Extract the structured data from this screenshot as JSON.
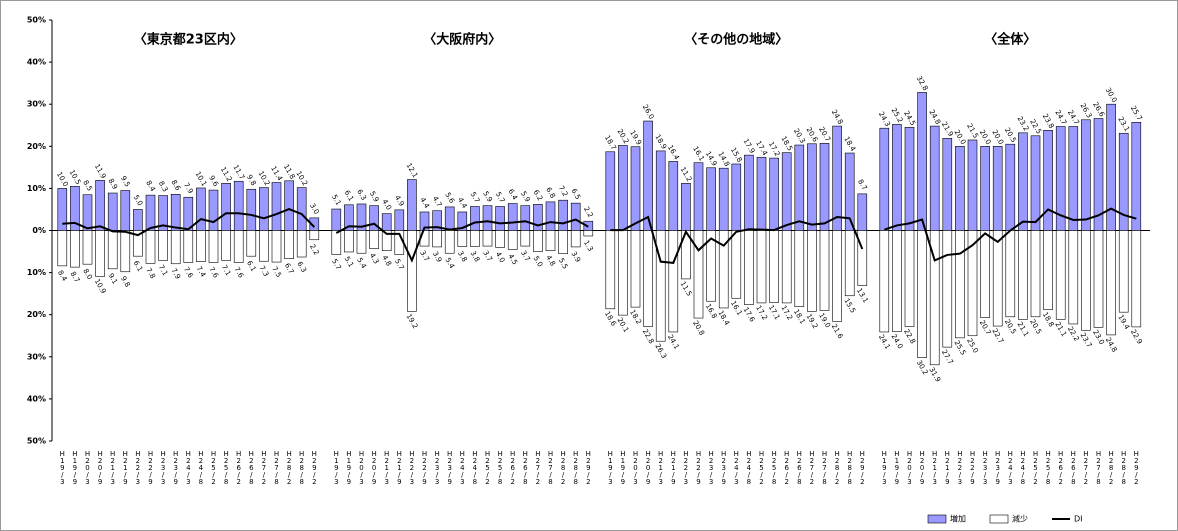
{
  "chart_data": [
    {
      "type": "bar",
      "title": "〈東京都23区内〉",
      "categories": [
        "H19/3",
        "H19/9",
        "H20/3",
        "H20/9",
        "H21/3",
        "H21/9",
        "H22/3",
        "H22/9",
        "H23/3",
        "H23/9",
        "H24/3",
        "H24/8",
        "H25/2",
        "H25/8",
        "H26/2",
        "H26/8",
        "H27/2",
        "H27/8",
        "H28/2",
        "H28/8",
        "H29/2"
      ],
      "ylim": [
        -50,
        50
      ],
      "yticks": [
        {
          "value": 50,
          "label": "50%"
        },
        {
          "value": 40,
          "label": "40%"
        },
        {
          "value": 30,
          "label": "30%"
        },
        {
          "value": 20,
          "label": "20%"
        },
        {
          "value": 10,
          "label": "10%"
        },
        {
          "value": 0,
          "label": "0%"
        },
        {
          "value": -10,
          "label": "10%"
        },
        {
          "value": -20,
          "label": "20%"
        },
        {
          "value": -30,
          "label": "30%"
        },
        {
          "value": -40,
          "label": "40%"
        },
        {
          "value": -50,
          "label": "50%"
        }
      ],
      "series": [
        {
          "name": "増加",
          "color": "#9999ff",
          "values": [
            10.0,
            10.5,
            8.5,
            11.9,
            8.9,
            9.5,
            5.0,
            8.4,
            8.3,
            8.6,
            7.9,
            10.1,
            9.6,
            11.2,
            11.7,
            9.8,
            10.2,
            11.4,
            11.8,
            10.2,
            3.0
          ],
          "value_labels": [
            "10.0",
            "10.5",
            "8.5",
            "11.9",
            "8.9",
            "9.5",
            "5.0",
            "8.4",
            "8.3",
            "8.6",
            "7.9",
            "10.1",
            "9.6",
            "11.2",
            "11.7",
            "9.8",
            "10.2",
            "11.4",
            "11.8",
            "10.2",
            "3.0"
          ]
        },
        {
          "name": "減少",
          "color": "#ffffff",
          "values": [
            -8.4,
            -8.7,
            -8.0,
            -10.9,
            -9.1,
            -9.8,
            -6.1,
            -7.8,
            -7.1,
            -7.9,
            -7.6,
            -7.4,
            -7.6,
            -7.1,
            -7.6,
            -6.1,
            -7.3,
            -7.5,
            -6.7,
            -6.3,
            -2.2
          ],
          "value_labels": [
            "8.4",
            "8.7",
            "8.0",
            "10.9",
            "9.1",
            "9.8",
            "6.1",
            "7.8",
            "7.1",
            "7.9",
            "7.6",
            "7.4",
            "7.6",
            "7.1",
            "7.6",
            "6.1",
            "7.3",
            "7.5",
            "6.7",
            "6.3",
            "2.2"
          ]
        },
        {
          "name": "DI",
          "type": "line",
          "color": "#000000",
          "values": [
            1.6,
            1.8,
            0.5,
            1.0,
            -0.2,
            -0.3,
            -1.1,
            0.6,
            1.2,
            0.7,
            0.3,
            2.7,
            2.0,
            4.1,
            4.1,
            3.7,
            2.9,
            3.9,
            5.1,
            3.9,
            0.8
          ]
        }
      ]
    },
    {
      "type": "bar",
      "title": "〈大阪府内〉",
      "categories": [
        "H19/3",
        "H19/9",
        "H20/3",
        "H20/9",
        "H21/3",
        "H21/9",
        "H22/3",
        "H22/9",
        "H23/3",
        "H23/9",
        "H24/3",
        "H24/8",
        "H25/2",
        "H25/8",
        "H26/2",
        "H26/8",
        "H27/2",
        "H27/8",
        "H28/2",
        "H28/8",
        "H29/2"
      ],
      "ylim": [
        -50,
        50
      ],
      "series": [
        {
          "color": "#9999ff",
          "values": [
            5.1,
            6.1,
            6.3,
            5.9,
            4.0,
            4.9,
            12.1,
            4.4,
            4.7,
            5.6,
            4.4,
            5.7,
            5.9,
            5.7,
            6.4,
            5.9,
            6.2,
            6.8,
            7.2,
            6.5,
            2.2
          ],
          "value_labels": [
            "5.1",
            "6.1",
            "6.3",
            "5.9",
            "4.0",
            "4.9",
            "12.1",
            "4.4",
            "4.7",
            "5.6",
            "4.4",
            "5.7",
            "5.9",
            "5.7",
            "6.4",
            "5.9",
            "6.2",
            "6.8",
            "7.2",
            "6.5",
            "2.2"
          ]
        },
        {
          "color": "#ffffff",
          "values": [
            -5.7,
            -5.1,
            -5.4,
            -4.3,
            -4.8,
            -5.7,
            -19.2,
            -3.7,
            -3.9,
            -5.4,
            -3.8,
            -3.8,
            -3.7,
            -4.0,
            -4.5,
            -3.7,
            -5.0,
            -4.8,
            -5.5,
            -3.9,
            -1.3
          ],
          "value_labels": [
            "5.7",
            "5.1",
            "5.4",
            "4.3",
            "4.8",
            "5.7",
            "19.2",
            "3.7",
            "3.9",
            "5.4",
            "3.8",
            "3.8",
            "3.7",
            "4.0",
            "4.5",
            "3.7",
            "5.0",
            "4.8",
            "5.5",
            "3.9",
            "1.3"
          ]
        },
        {
          "type": "line",
          "color": "#000000",
          "values": [
            -0.6,
            1.0,
            0.9,
            1.6,
            -0.8,
            -0.8,
            -7.1,
            0.7,
            0.8,
            0.2,
            0.6,
            1.9,
            2.2,
            1.7,
            1.9,
            2.2,
            1.2,
            2.0,
            1.7,
            2.6,
            0.9
          ]
        }
      ]
    },
    {
      "type": "bar",
      "title": "〈その他の地域〉",
      "categories": [
        "H19/3",
        "H19/9",
        "H20/3",
        "H20/9",
        "H21/3",
        "H21/9",
        "H22/3",
        "H22/9",
        "H23/3",
        "H23/9",
        "H24/3",
        "H24/8",
        "H25/2",
        "H25/8",
        "H26/2",
        "H26/8",
        "H27/2",
        "H27/8",
        "H28/2",
        "H28/8",
        "H29/2"
      ],
      "ylim": [
        -50,
        50
      ],
      "series": [
        {
          "color": "#9999ff",
          "values": [
            18.7,
            20.2,
            19.9,
            26.0,
            18.9,
            16.4,
            11.2,
            16.1,
            14.9,
            14.8,
            15.8,
            17.9,
            17.4,
            17.2,
            18.5,
            20.3,
            20.6,
            20.7,
            24.8,
            18.4,
            8.7
          ],
          "value_labels": [
            "18.7",
            "20.2",
            "19.9",
            "26.0",
            "18.9",
            "16.4",
            "11.2",
            "16.1",
            "14.9",
            "14.8",
            "15.8",
            "17.9",
            "17.4",
            "17.2",
            "18.5",
            "20.3",
            "20.6",
            "20.7",
            "24.8",
            "18.4",
            "8.7"
          ]
        },
        {
          "color": "#ffffff",
          "values": [
            -18.6,
            -20.1,
            -18.2,
            -22.8,
            -26.3,
            -24.1,
            -11.5,
            -20.8,
            -16.8,
            -18.4,
            -16.1,
            -17.6,
            -17.2,
            -17.1,
            -17.2,
            -18.1,
            -19.2,
            -19.0,
            -21.6,
            -15.5,
            -13.1
          ],
          "value_labels": [
            "18.6",
            "20.1",
            "18.2",
            "22.8",
            "26.3",
            "24.1",
            "11.5",
            "20.8",
            "16.8",
            "18.4",
            "16.1",
            "17.6",
            "17.2",
            "17.1",
            "17.2",
            "18.1",
            "19.2",
            "19.0",
            "21.6",
            "15.5",
            "13.1"
          ]
        },
        {
          "type": "line",
          "color": "#000000",
          "values": [
            0.1,
            0.1,
            1.7,
            3.2,
            -7.4,
            -7.7,
            -0.3,
            -4.7,
            -1.9,
            -3.6,
            -0.3,
            0.3,
            0.2,
            0.1,
            1.3,
            2.2,
            1.4,
            1.7,
            3.2,
            2.9,
            -4.4
          ]
        }
      ]
    },
    {
      "type": "bar",
      "title": "〈全体〉",
      "categories": [
        "H19/3",
        "H19/9",
        "H20/3",
        "H20/9",
        "H21/3",
        "H21/9",
        "H22/3",
        "H22/9",
        "H23/3",
        "H23/9",
        "H24/3",
        "H24/8",
        "H25/2",
        "H25/8",
        "H26/2",
        "H26/8",
        "H27/2",
        "H27/8",
        "H28/2",
        "H28/8",
        "H29/2"
      ],
      "ylim": [
        -50,
        50
      ],
      "series": [
        {
          "color": "#9999ff",
          "values": [
            24.3,
            25.2,
            24.5,
            32.8,
            24.8,
            21.9,
            20.0,
            21.5,
            20.0,
            20.0,
            20.5,
            23.2,
            22.5,
            23.8,
            24.7,
            24.7,
            26.3,
            26.6,
            30.0,
            23.1,
            25.7
          ],
          "value_labels": [
            "24.3",
            "25.2",
            "24.5",
            "32.8",
            "24.8",
            "21.9",
            "20.0",
            "21.5",
            "20.0",
            "20.0",
            "20.5",
            "23.2",
            "22.5",
            "23.8",
            "24.7",
            "24.7",
            "26.3",
            "26.6",
            "30.0",
            "23.1",
            "25.7"
          ]
        },
        {
          "color": "#ffffff",
          "values": [
            -24.1,
            -24.0,
            -22.8,
            -30.2,
            -31.9,
            -27.7,
            -25.5,
            -25.0,
            -20.7,
            -22.7,
            -20.5,
            -21.1,
            -20.5,
            -18.8,
            -21.1,
            -22.2,
            -23.7,
            -23.0,
            -24.8,
            -19.4,
            -22.9
          ],
          "value_labels": [
            "24.1",
            "24.0",
            "22.8",
            "30.2",
            "31.9",
            "27.7",
            "25.5",
            "25.0",
            "20.7",
            "22.7",
            "20.5",
            "21.1",
            "20.5",
            "18.8",
            "21.1",
            "22.2",
            "23.7",
            "23.0",
            "24.8",
            "19.4",
            "22.9"
          ]
        },
        {
          "type": "line",
          "color": "#000000",
          "values": [
            0.2,
            1.2,
            1.7,
            2.6,
            -7.1,
            -5.8,
            -5.5,
            -3.5,
            -0.7,
            -2.7,
            0,
            2.1,
            2.0,
            5.0,
            3.6,
            2.5,
            2.6,
            3.6,
            5.2,
            3.7,
            2.8
          ]
        }
      ]
    }
  ]
}
